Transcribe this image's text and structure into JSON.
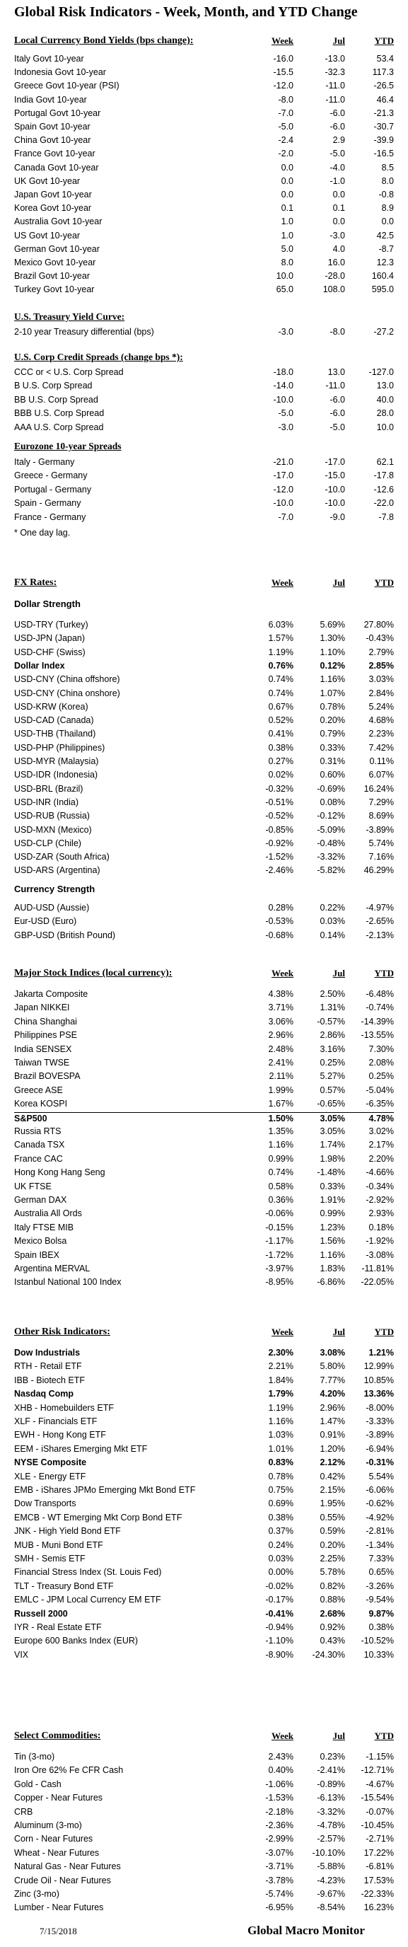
{
  "title": "Global Risk Indicators - Week, Month, and YTD Change",
  "columns": {
    "week": "Week",
    "jul": "Jul",
    "ytd": "YTD"
  },
  "bonds": {
    "heading": "Local Currency Bond Yields (bps change):",
    "rows": [
      [
        "Italy Govt 10-year",
        "-16.0",
        "-13.0",
        "53.4"
      ],
      [
        "Indonesia Govt 10-year",
        "-15.5",
        "-32.3",
        "117.3"
      ],
      [
        "Greece Govt 10-year (PSI)",
        "-12.0",
        "-11.0",
        "-26.5"
      ],
      [
        "India Govt 10-year",
        "-8.0",
        "-11.0",
        "46.4"
      ],
      [
        "Portugal Govt 10-year",
        "-7.0",
        "-6.0",
        "-21.3"
      ],
      [
        "Spain Govt 10-year",
        "-5.0",
        "-6.0",
        "-30.7"
      ],
      [
        "China Govt 10-year",
        "-2.4",
        "2.9",
        "-39.9"
      ],
      [
        "France Govt 10-year",
        "-2.0",
        "-5.0",
        "-16.5"
      ],
      [
        "Canada Govt 10-year",
        "0.0",
        "-4.0",
        "8.5"
      ],
      [
        "UK Govt 10-year",
        "0.0",
        "-1.0",
        "8.0"
      ],
      [
        "Japan Govt 10-year",
        "0.0",
        "0.0",
        "-0.8"
      ],
      [
        "Korea Govt 10-year",
        "0.1",
        "0.1",
        "8.9"
      ],
      [
        "Australia Govt 10-year",
        "1.0",
        "0.0",
        "0.0"
      ],
      [
        "US Govt 10-year",
        "1.0",
        "-3.0",
        "42.5"
      ],
      [
        "German Govt 10-year",
        "5.0",
        "4.0",
        "-8.7"
      ],
      [
        "Mexico Govt 10-year",
        "8.0",
        "16.0",
        "12.3"
      ],
      [
        "Brazil Govt 10-year",
        "10.0",
        "-28.0",
        "160.4"
      ],
      [
        "Turkey Govt 10-year",
        "65.0",
        "108.0",
        "595.0"
      ]
    ]
  },
  "treasury": {
    "heading": "U.S. Treasury Yield Curve:",
    "rows": [
      [
        "2-10 year Treasury differential (bps)",
        "-3.0",
        "-8.0",
        "-27.2"
      ]
    ]
  },
  "credit": {
    "heading": "U.S. Corp Credit Spreads (change bps *):",
    "rows": [
      [
        "CCC or < U.S. Corp Spread",
        "-18.0",
        "13.0",
        "-127.0"
      ],
      [
        "B U.S. Corp Spread",
        "-14.0",
        "-11.0",
        "13.0"
      ],
      [
        "BB U.S. Corp Spread",
        "-10.0",
        "-6.0",
        "40.0"
      ],
      [
        "BBB U.S. Corp Spread",
        "-5.0",
        "-6.0",
        "28.0"
      ],
      [
        "AAA U.S. Corp Spread",
        "-3.0",
        "-5.0",
        "10.0"
      ]
    ]
  },
  "eurozone": {
    "heading": "Eurozone 10-year Spreads",
    "rows": [
      [
        "Italy - Germany",
        "-21.0",
        "-17.0",
        "62.1"
      ],
      [
        "Greece - Germany",
        "-17.0",
        "-15.0",
        "-17.8"
      ],
      [
        "Portugal - Germany",
        "-12.0",
        "-10.0",
        "-12.6"
      ],
      [
        "Spain - Germany",
        "-10.0",
        "-10.0",
        "-22.0"
      ],
      [
        "France - Germany",
        "-7.0",
        "-9.0",
        "-7.8"
      ]
    ],
    "note": "* One day lag."
  },
  "fx": {
    "heading": "FX Rates:",
    "dollar_heading": "Dollar Strength",
    "dollar_rows": [
      [
        "USD-TRY (Turkey)",
        "6.03%",
        "5.69%",
        "27.80%"
      ],
      [
        "USD-JPN (Japan)",
        "1.57%",
        "1.30%",
        "-0.43%"
      ],
      [
        "USD-CHF (Swiss)",
        "1.19%",
        "1.10%",
        "2.79%"
      ],
      [
        "Dollar Index",
        "0.76%",
        "0.12%",
        "2.85%"
      ],
      [
        "USD-CNY (China offshore)",
        "0.74%",
        "1.16%",
        "3.03%"
      ],
      [
        "USD-CNY (China onshore)",
        "0.74%",
        "1.07%",
        "2.84%"
      ],
      [
        "USD-KRW (Korea)",
        "0.67%",
        "0.78%",
        "5.24%"
      ],
      [
        "USD-CAD (Canada)",
        "0.52%",
        "0.20%",
        "4.68%"
      ],
      [
        "USD-THB (Thailand)",
        "0.41%",
        "0.79%",
        "2.23%"
      ],
      [
        "USD-PHP (Philippines)",
        "0.38%",
        "0.33%",
        "7.42%"
      ],
      [
        "USD-MYR (Malaysia)",
        "0.27%",
        "0.31%",
        "0.11%"
      ],
      [
        "USD-IDR (Indonesia)",
        "0.02%",
        "0.60%",
        "6.07%"
      ],
      [
        "USD-BRL (Brazil)",
        "-0.32%",
        "-0.69%",
        "16.24%"
      ],
      [
        "USD-INR (India)",
        "-0.51%",
        "0.08%",
        "7.29%"
      ],
      [
        "USD-RUB (Russia)",
        "-0.52%",
        "-0.12%",
        "8.69%"
      ],
      [
        "USD-MXN (Mexico)",
        "-0.85%",
        "-5.09%",
        "-3.89%"
      ],
      [
        "USD-CLP (Chile)",
        "-0.92%",
        "-0.48%",
        "5.74%"
      ],
      [
        "USD-ZAR (South Africa)",
        "-1.52%",
        "-3.32%",
        "7.16%"
      ],
      [
        "USD-ARS (Argentina)",
        "-2.46%",
        "-5.82%",
        "46.29%"
      ]
    ],
    "currency_heading": "Currency Strength",
    "currency_rows": [
      [
        "AUD-USD (Aussie)",
        "0.28%",
        "0.22%",
        "-4.97%"
      ],
      [
        "Eur-USD (Euro)",
        "-0.53%",
        "0.03%",
        "-2.65%"
      ],
      [
        "GBP-USD (British Pound)",
        "-0.68%",
        "0.14%",
        "-2.13%"
      ]
    ]
  },
  "stocks": {
    "heading": "Major Stock Indices (local currency):",
    "rows": [
      [
        "Jakarta Composite",
        "4.38%",
        "2.50%",
        "-6.48%"
      ],
      [
        "Japan NIKKEI",
        "3.71%",
        "1.31%",
        "-0.74%"
      ],
      [
        "China Shanghai",
        "3.06%",
        "-0.57%",
        "-14.39%"
      ],
      [
        "Philippines PSE",
        "2.96%",
        "2.86%",
        "-13.55%"
      ],
      [
        "India SENSEX",
        "2.48%",
        "3.16%",
        "7.30%"
      ],
      [
        "Taiwan  TWSE",
        "2.41%",
        "0.25%",
        "2.08%"
      ],
      [
        "Brazil BOVESPA",
        "2.11%",
        "5.27%",
        "0.25%"
      ],
      [
        "Greece ASE",
        "1.99%",
        "0.57%",
        "-5.04%"
      ],
      [
        "Korea KOSPI",
        "1.67%",
        "-0.65%",
        "-6.35%"
      ],
      [
        "S&P500",
        "1.50%",
        "3.05%",
        "4.78%"
      ],
      [
        "Russia RTS",
        "1.35%",
        "3.05%",
        "3.02%"
      ],
      [
        "Canada TSX",
        "1.16%",
        "1.74%",
        "2.17%"
      ],
      [
        "France CAC",
        "0.99%",
        "1.98%",
        "2.20%"
      ],
      [
        "Hong Kong Hang Seng",
        "0.74%",
        "-1.48%",
        "-4.66%"
      ],
      [
        "UK FTSE",
        "0.58%",
        "0.33%",
        "-0.34%"
      ],
      [
        "German DAX",
        "0.36%",
        "1.91%",
        "-2.92%"
      ],
      [
        "Australia All Ords",
        "-0.06%",
        "0.99%",
        "2.93%"
      ],
      [
        "Italy FTSE MIB",
        "-0.15%",
        "1.23%",
        "0.18%"
      ],
      [
        "Mexico Bolsa",
        "-1.17%",
        "1.56%",
        "-1.92%"
      ],
      [
        "Spain IBEX",
        "-1.72%",
        "1.16%",
        "-3.08%"
      ],
      [
        "Argentina MERVAL",
        "-3.97%",
        "1.83%",
        "-11.81%"
      ],
      [
        "Istanbul National 100 Index",
        "-8.95%",
        "-6.86%",
        "-22.05%"
      ]
    ]
  },
  "other": {
    "heading": "Other Risk Indicators:",
    "rows": [
      [
        "Dow Industrials",
        "2.30%",
        "3.08%",
        "1.21%"
      ],
      [
        "RTH - Retail ETF",
        "2.21%",
        "5.80%",
        "12.99%"
      ],
      [
        "IBB - Biotech ETF",
        "1.84%",
        "7.77%",
        "10.85%"
      ],
      [
        "Nasdaq Comp",
        "1.79%",
        "4.20%",
        "13.36%"
      ],
      [
        "XHB - Homebuilders ETF",
        "1.19%",
        "2.96%",
        "-8.00%"
      ],
      [
        "XLF - Financials ETF",
        "1.16%",
        "1.47%",
        "-3.33%"
      ],
      [
        "EWH - Hong Kong ETF",
        "1.03%",
        "0.91%",
        "-3.89%"
      ],
      [
        "EEM - iShares Emerging Mkt ETF",
        "1.01%",
        "1.20%",
        "-6.94%"
      ],
      [
        "NYSE Composite",
        "0.83%",
        "2.12%",
        "-0.31%"
      ],
      [
        "XLE - Energy ETF",
        "0.78%",
        "0.42%",
        "5.54%"
      ],
      [
        "EMB - iShares JPMo Emerging Mkt Bond ETF",
        "0.75%",
        "2.15%",
        "-6.06%"
      ],
      [
        "Dow Transports",
        "0.69%",
        "1.95%",
        "-0.62%"
      ],
      [
        "EMCB - WT Emerging Mkt Corp Bond ETF",
        "0.38%",
        "0.55%",
        "-4.92%"
      ],
      [
        "JNK - High Yield Bond ETF",
        "0.37%",
        "0.59%",
        "-2.81%"
      ],
      [
        "MUB - Muni Bond ETF",
        "0.24%",
        "0.20%",
        "-1.34%"
      ],
      [
        "SMH - Semis ETF",
        "0.03%",
        "2.25%",
        "7.33%"
      ],
      [
        "Financial Stress Index (St. Louis Fed)",
        "0.00%",
        "5.78%",
        "0.65%"
      ],
      [
        "TLT - Treasury Bond ETF",
        "-0.02%",
        "0.82%",
        "-3.26%"
      ],
      [
        "EMLC - JPM Local Currency EM ETF",
        "-0.17%",
        "0.88%",
        "-9.54%"
      ],
      [
        "Russell 2000",
        "-0.41%",
        "2.68%",
        "9.87%"
      ],
      [
        "IYR - Real Estate ETF",
        "-0.94%",
        "0.92%",
        "0.38%"
      ],
      [
        "Europe 600 Banks Index (EUR)",
        "-1.10%",
        "0.43%",
        "-10.52%"
      ],
      [
        "VIX",
        "-8.90%",
        "-24.30%",
        "10.33%"
      ]
    ]
  },
  "commodities": {
    "heading": "Select Commodities:",
    "rows": [
      [
        "Tin (3-mo)",
        "2.43%",
        "0.23%",
        "-1.15%"
      ],
      [
        "Iron Ore 62% Fe CFR Cash",
        "0.40%",
        "-2.41%",
        "-12.71%"
      ],
      [
        "Gold - Cash",
        "-1.06%",
        "-0.89%",
        "-4.67%"
      ],
      [
        "Copper - Near Futures",
        "-1.53%",
        "-6.13%",
        "-15.54%"
      ],
      [
        "CRB",
        "-2.18%",
        "-3.32%",
        "-0.07%"
      ],
      [
        "Aluminum (3-mo)",
        "-2.36%",
        "-4.78%",
        "-10.45%"
      ],
      [
        "Corn - Near Futures",
        "-2.99%",
        "-2.57%",
        "-2.71%"
      ],
      [
        "Wheat - Near Futures",
        "-3.07%",
        "-10.10%",
        "17.22%"
      ],
      [
        "Natural Gas - Near Futures",
        "-3.71%",
        "-5.88%",
        "-6.81%"
      ],
      [
        "Crude Oil - Near Futures",
        "-3.78%",
        "-4.23%",
        "17.53%"
      ],
      [
        "Zinc (3-mo)",
        "-5.74%",
        "-9.67%",
        "-22.33%"
      ],
      [
        "Lumber - Near Futures",
        "-6.95%",
        "-8.54%",
        "16.23%"
      ]
    ]
  },
  "footer": {
    "date": "7/15/2018",
    "brand": "Global Macro Monitor"
  }
}
